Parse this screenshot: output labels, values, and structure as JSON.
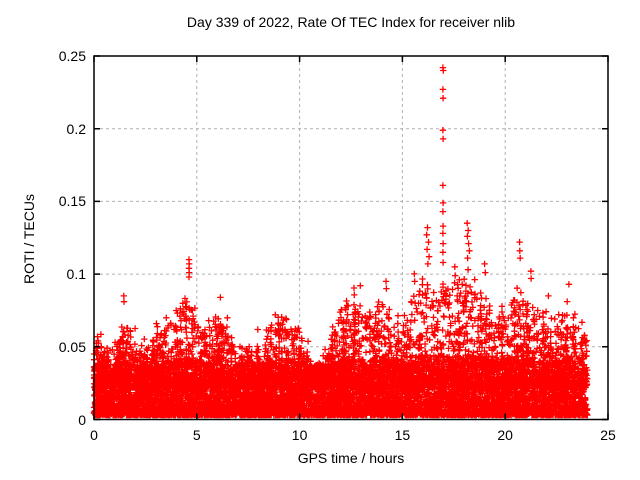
{
  "chart_data": {
    "type": "scatter",
    "title": "Day 339 of 2022, Rate Of TEC Index for receiver nlib",
    "xlabel": "GPS time / hours",
    "ylabel": "ROTI / TECUs",
    "xlim": [
      0,
      25
    ],
    "ylim": [
      0,
      0.25
    ],
    "xticks": [
      0,
      5,
      10,
      15,
      20,
      25
    ],
    "xtick_labels": [
      "0",
      "5",
      "10",
      "15",
      "20",
      "25"
    ],
    "yticks": [
      0,
      0.05,
      0.1,
      0.15,
      0.2,
      0.25
    ],
    "ytick_labels": [
      "0",
      "0.05",
      "0.1",
      "0.15",
      "0.2",
      "0.25"
    ],
    "grid": true,
    "legend": "none",
    "colors": {
      "marker": "#ff0000",
      "grid": "#b0b0b0",
      "axis": "#000000",
      "background": "#ffffff"
    },
    "marker": {
      "shape": "plus",
      "half": 3.2,
      "stroke": 1.3
    },
    "x_data_range": [
      0,
      24
    ],
    "baseline_band": {
      "min": 0.003,
      "max": 0.036
    },
    "envelope": [
      [
        0,
        0.066
      ],
      [
        0.5,
        0.052
      ],
      [
        1,
        0.058
      ],
      [
        1.5,
        0.078
      ],
      [
        2,
        0.052
      ],
      [
        2.5,
        0.058
      ],
      [
        3,
        0.062
      ],
      [
        3.5,
        0.075
      ],
      [
        4,
        0.082
      ],
      [
        4.5,
        0.095
      ],
      [
        5,
        0.072
      ],
      [
        5.5,
        0.066
      ],
      [
        6,
        0.082
      ],
      [
        6.5,
        0.062
      ],
      [
        7,
        0.056
      ],
      [
        7.5,
        0.056
      ],
      [
        8,
        0.054
      ],
      [
        8.5,
        0.073
      ],
      [
        9,
        0.077
      ],
      [
        9.5,
        0.078
      ],
      [
        10,
        0.072
      ],
      [
        10.5,
        0.046
      ],
      [
        11,
        0.044
      ],
      [
        11.5,
        0.055
      ],
      [
        12,
        0.086
      ],
      [
        12.5,
        0.088
      ],
      [
        13,
        0.09
      ],
      [
        13.5,
        0.082
      ],
      [
        14,
        0.09
      ],
      [
        14.5,
        0.076
      ],
      [
        15,
        0.072
      ],
      [
        15.5,
        0.092
      ],
      [
        16,
        0.11
      ],
      [
        16.5,
        0.1
      ],
      [
        17,
        0.105
      ],
      [
        17.5,
        0.098
      ],
      [
        18,
        0.11
      ],
      [
        18.5,
        0.1
      ],
      [
        19,
        0.095
      ],
      [
        19.5,
        0.08
      ],
      [
        20,
        0.076
      ],
      [
        20.5,
        0.095
      ],
      [
        21,
        0.092
      ],
      [
        21.5,
        0.085
      ],
      [
        22,
        0.076
      ],
      [
        22.5,
        0.08
      ],
      [
        23,
        0.082
      ],
      [
        23.5,
        0.072
      ],
      [
        24,
        0.065
      ]
    ],
    "outliers": [
      [
        16.97,
        0.242
      ],
      [
        16.99,
        0.24
      ],
      [
        16.97,
        0.227
      ],
      [
        16.98,
        0.221
      ],
      [
        16.97,
        0.199
      ],
      [
        16.98,
        0.193
      ],
      [
        16.97,
        0.161
      ],
      [
        16.98,
        0.149
      ],
      [
        16.97,
        0.143
      ],
      [
        16.98,
        0.133
      ],
      [
        16.97,
        0.128
      ],
      [
        16.98,
        0.121
      ],
      [
        16.97,
        0.115
      ],
      [
        16.98,
        0.108
      ],
      [
        4.62,
        0.11
      ],
      [
        4.63,
        0.107
      ],
      [
        4.62,
        0.104
      ],
      [
        4.63,
        0.101
      ],
      [
        4.62,
        0.098
      ],
      [
        16.22,
        0.132
      ],
      [
        16.18,
        0.127
      ],
      [
        16.27,
        0.122
      ],
      [
        16.2,
        0.117
      ],
      [
        16.3,
        0.112
      ],
      [
        16.24,
        0.107
      ],
      [
        18.15,
        0.135
      ],
      [
        18.2,
        0.13
      ],
      [
        18.16,
        0.126
      ],
      [
        18.22,
        0.121
      ],
      [
        18.26,
        0.116
      ],
      [
        18.17,
        0.111
      ],
      [
        20.7,
        0.122
      ],
      [
        20.71,
        0.116
      ],
      [
        20.73,
        0.111
      ],
      [
        21.25,
        0.102
      ],
      [
        21.26,
        0.097
      ],
      [
        19.0,
        0.107
      ],
      [
        19.03,
        0.101
      ],
      [
        17.55,
        0.105
      ],
      [
        17.57,
        0.099
      ],
      [
        17.54,
        0.094
      ],
      [
        23.1,
        0.093
      ],
      [
        1.45,
        0.085
      ],
      [
        1.46,
        0.081
      ],
      [
        6.15,
        0.084
      ],
      [
        12.95,
        0.092
      ],
      [
        14.2,
        0.095
      ],
      [
        14.22,
        0.09
      ],
      [
        15.6,
        0.095
      ],
      [
        22.1,
        0.085
      ]
    ],
    "synthesis": {
      "seed": 339,
      "baseline_points": 8000,
      "mid_points": 2800,
      "baseline_exp": 1.9,
      "mid_exp": 2.1,
      "cols_per_bin_min": 2,
      "cols_per_bin_rand": 3,
      "col_pts_min": 4,
      "col_pts_rand": 5
    }
  }
}
